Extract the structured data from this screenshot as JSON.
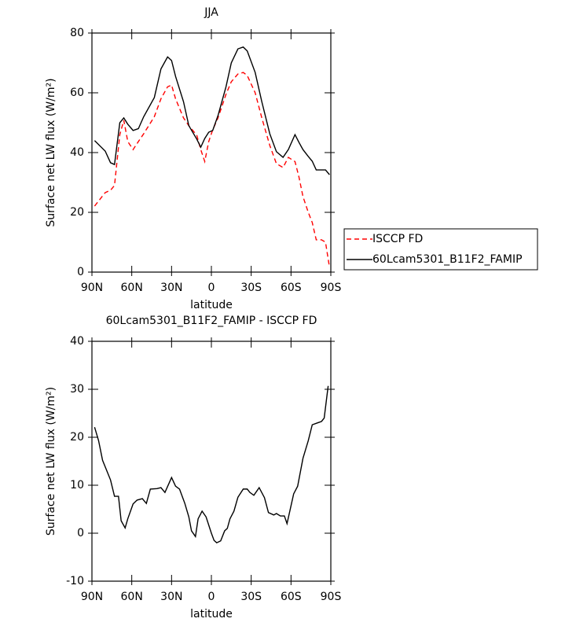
{
  "chart_data": [
    {
      "type": "line",
      "title": "JJA",
      "x_label": "latitude",
      "y_label": "Surface net LW flux (W/m²)",
      "x": [
        88,
        80,
        76,
        73,
        69,
        66,
        63,
        59,
        55,
        51,
        43,
        38,
        33,
        30,
        27,
        21,
        17,
        11,
        8,
        5,
        2,
        -1,
        -5,
        -11,
        -15,
        -20,
        -24,
        -27,
        -33,
        -38,
        -44,
        -49,
        -54,
        -58,
        -63,
        -66,
        -69,
        -73,
        -76,
        -79,
        -83,
        -86,
        -89
      ],
      "series": [
        {
          "name": "ISCCP FD",
          "color": "#ff0000",
          "dash": true,
          "values": [
            22.1,
            26.6,
            27.4,
            29,
            46,
            50.8,
            43.7,
            41,
            43.7,
            46.3,
            52,
            58,
            62,
            62.6,
            58,
            51.6,
            49,
            45.8,
            41,
            37,
            43.7,
            47.6,
            51.6,
            59.5,
            63.7,
            66.3,
            66.8,
            65.8,
            60,
            51.6,
            42.4,
            36.3,
            35,
            38.4,
            37,
            31.8,
            25.3,
            20,
            16.6,
            10.8,
            10.8,
            10,
            1.6
          ]
        },
        {
          "name": "60Lcam5301_B11F2_FAMIP",
          "color": "#000000",
          "dash": false,
          "values": [
            44,
            40.5,
            36.6,
            36,
            50,
            51.6,
            49.5,
            47.4,
            48,
            52,
            58.4,
            68,
            72,
            70.8,
            65.5,
            57,
            49,
            44.5,
            41.8,
            44.7,
            46.8,
            47.4,
            52.4,
            62,
            70,
            74.7,
            75.3,
            74,
            66.8,
            57,
            46.3,
            40.3,
            38.4,
            41,
            46,
            43.4,
            41,
            38.7,
            37.1,
            34.2,
            34.2,
            34.2,
            32.6
          ]
        }
      ],
      "xlim": [
        90,
        -90
      ],
      "xticks": [
        {
          "value": 90,
          "label": "90N"
        },
        {
          "value": 60,
          "label": "60N"
        },
        {
          "value": 30,
          "label": "30N"
        },
        0,
        {
          "value": -30,
          "label": "30S"
        },
        {
          "value": -60,
          "label": "60S"
        },
        {
          "value": -90,
          "label": "90S"
        }
      ],
      "ylim": [
        0,
        80
      ],
      "yticks": [
        0,
        20,
        40,
        60,
        80
      ],
      "legend": "right"
    },
    {
      "type": "line",
      "title": "60Lcam5301_B11F2_FAMIP - ISCCP FD",
      "x_label": "latitude",
      "y_label": "Surface net LW flux (W/m²)",
      "x": [
        88,
        85,
        82,
        76,
        73,
        70,
        68,
        65,
        63,
        59,
        56,
        52,
        49,
        46,
        41,
        38,
        35,
        30,
        27,
        24,
        20,
        17,
        15,
        12,
        10,
        7,
        4,
        0,
        -2,
        -4,
        -7,
        -10,
        -12,
        -14,
        -17,
        -20,
        -24,
        -27,
        -29,
        -32,
        -36,
        -40,
        -43,
        -47,
        -49,
        -52,
        -55,
        -57,
        -62,
        -65,
        -69,
        -73,
        -76,
        -80,
        -83,
        -85,
        -88
      ],
      "series": [
        {
          "color": "#000000",
          "dash": false,
          "values": [
            22.1,
            19.3,
            15.2,
            11.1,
            7.7,
            7.7,
            2.6,
            1.1,
            3,
            6.1,
            6.9,
            7.2,
            6.2,
            9.2,
            9.3,
            9.5,
            8.5,
            11.6,
            9.8,
            9.2,
            6.2,
            3.4,
            0.5,
            -0.7,
            3,
            4.6,
            3.4,
            0,
            -1.5,
            -2,
            -1.6,
            0.5,
            1,
            3,
            4.6,
            7.5,
            9.2,
            9.2,
            8.5,
            7.9,
            9.5,
            7.4,
            4.3,
            3.8,
            4.1,
            3.6,
            3.6,
            2,
            8.2,
            9.8,
            15.6,
            19.3,
            22.6,
            23,
            23.3,
            24,
            30.7
          ]
        }
      ],
      "xlim": [
        90,
        -90
      ],
      "xticks": [
        {
          "value": 90,
          "label": "90N"
        },
        {
          "value": 60,
          "label": "60N"
        },
        {
          "value": 30,
          "label": "30N"
        },
        0,
        {
          "value": -30,
          "label": "30S"
        },
        {
          "value": -60,
          "label": "60S"
        },
        {
          "value": -90,
          "label": "90S"
        }
      ],
      "ylim": [
        -10,
        40
      ],
      "yticks": [
        -10,
        0,
        10,
        20,
        30,
        40
      ]
    }
  ]
}
